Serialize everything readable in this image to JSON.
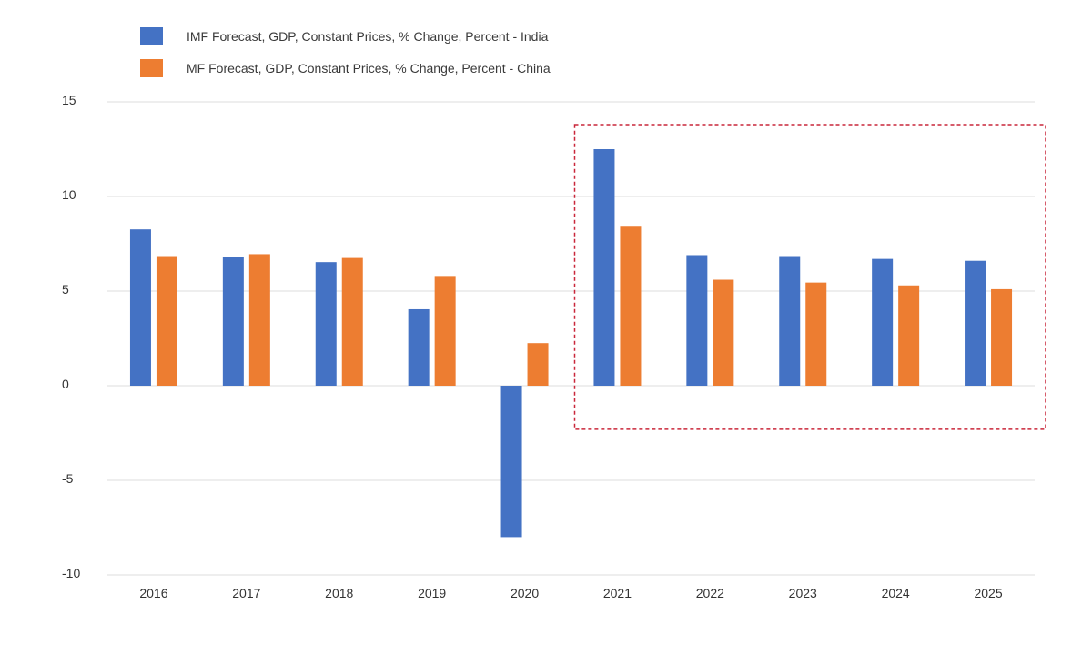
{
  "chart_data": {
    "type": "bar",
    "categories": [
      "2016",
      "2017",
      "2018",
      "2019",
      "2020",
      "2021",
      "2022",
      "2023",
      "2024",
      "2025"
    ],
    "series": [
      {
        "name": "IMF Forecast, GDP, Constant Prices, % Change, Percent - India",
        "color": "#4472c4",
        "values": [
          8.26,
          6.8,
          6.53,
          4.04,
          -8.0,
          12.5,
          6.9,
          6.85,
          6.7,
          6.6
        ]
      },
      {
        "name": "MF Forecast, GDP, Constant Prices, % Change, Percent - China",
        "color": "#ed7d31",
        "values": [
          6.85,
          6.95,
          6.75,
          5.8,
          2.25,
          8.45,
          5.6,
          5.45,
          5.3,
          5.1
        ]
      }
    ],
    "ylim": [
      -10,
      15
    ],
    "yticks": [
      "15",
      "10",
      "5",
      "0",
      "-5",
      "-10"
    ],
    "ytick_values": [
      15,
      10,
      5,
      0,
      -5,
      -10
    ],
    "grid": true,
    "legend_position": "top-left",
    "highlight": {
      "style": "dashed",
      "color": "#c9273a",
      "categories": [
        "2021",
        "2022",
        "2023",
        "2024",
        "2025"
      ],
      "y_range": [
        -2.3,
        13.8
      ]
    },
    "xlabel": "",
    "ylabel": "",
    "title": ""
  }
}
